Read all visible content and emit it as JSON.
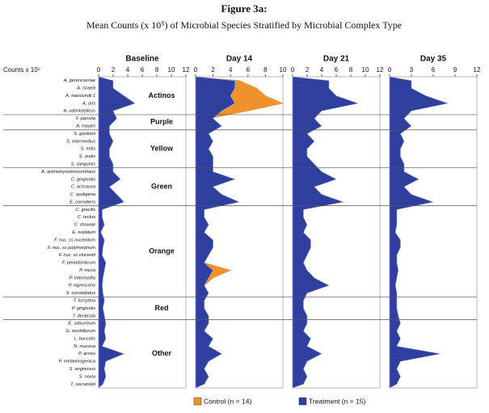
{
  "chart_data": {
    "type": "area",
    "title": "Figure 3a:",
    "subtitle": "Mean Counts (x 10⁵) of Microbial Species Stratified by Microbial Complex Type",
    "axis_label": "Counts x 10⁵",
    "groups": [
      {
        "name": "Actinos",
        "species": [
          "A. gerencseriae",
          "A. israelii",
          "A. naeslundii 1",
          "A. oris",
          "A. odontolyticus"
        ]
      },
      {
        "name": "Purple",
        "species": [
          "V. parvula",
          "A. meyeri"
        ]
      },
      {
        "name": "Yellow",
        "species": [
          "S. gordonii",
          "S. intermedius",
          "S. mitis",
          "S. oralis",
          "S. sanguinis"
        ]
      },
      {
        "name": "Green",
        "species": [
          "A. actinomycetemcomitans",
          "C. gingivalis",
          "C. ochracea",
          "C. sputigena",
          "E. corrodens"
        ]
      },
      {
        "name": "Orange",
        "species": [
          "C. gracilis",
          "C. rectus",
          "C. showae",
          "E. nodatum",
          "F. nuc. ss nucleatum",
          "F. nuc. ss polymorphum",
          "F. nuc. ss vincentii",
          "F. periodonticum",
          "P. micra",
          "P. intermedia",
          "P. nigrescens",
          "S. constellatus"
        ]
      },
      {
        "name": "Red",
        "species": [
          "T. forsythia",
          "P. gingivalis",
          "T. denticola"
        ]
      },
      {
        "name": "Other",
        "species": [
          "E. saburreum",
          "G. morbillorum",
          "L. buccalis",
          "N. mucosa",
          "P. acnes",
          "P. melaninogenica",
          "S. anginosus",
          "S. noxia",
          "T. socranskii"
        ]
      }
    ],
    "legend": [
      {
        "name": "Control (n = 14)",
        "color": "#f0922b"
      },
      {
        "name": "Treatment (n = 15)",
        "color": "#2e3f9e"
      }
    ],
    "panels": [
      {
        "title": "Baseline",
        "xlim": [
          0,
          12
        ],
        "xticks": [
          0,
          2,
          4,
          6,
          8,
          10,
          12
        ],
        "series": [
          {
            "name": "Control (n = 14)",
            "color": "#f0922b",
            "values": [
              1.8,
              1.8,
              3.2,
              4.6,
              1.8,
              2.2,
              1.3,
              1.3,
              1.8,
              1.3,
              1.3,
              1.8,
              1.8,
              2.7,
              1.3,
              2.2,
              3.2,
              0.4,
              0.4,
              0.7,
              0.3,
              0.7,
              0.5,
              0.4,
              0.9,
              0.7,
              0.5,
              0.4,
              0.5,
              0.7,
              0.5,
              0.7,
              0.9,
              0.7,
              0.9,
              0.4,
              3.2,
              0.9,
              0.7,
              0.9,
              0.5
            ]
          },
          {
            "name": "Treatment (n = 15)",
            "color": "#2e3f9e",
            "values": [
              2,
              2,
              3.5,
              5,
              2,
              2.5,
              1.5,
              1.5,
              2,
              1.5,
              1.5,
              2,
              2,
              3,
              1.5,
              2.5,
              3.5,
              0.5,
              0.5,
              0.8,
              0.3,
              0.8,
              0.6,
              0.5,
              1,
              0.8,
              0.6,
              0.5,
              0.6,
              0.8,
              0.6,
              0.8,
              1,
              0.8,
              1,
              0.5,
              3.5,
              1,
              0.8,
              1,
              0.6
            ]
          }
        ]
      },
      {
        "title": "Day 14",
        "xlim": [
          0,
          10
        ],
        "xticks": [
          0,
          2,
          4,
          6,
          8,
          10
        ],
        "series": [
          {
            "name": "Control (n = 14)",
            "color": "#f0922b",
            "values": [
              5,
              7,
              8,
              10,
              6,
              1.5,
              2.5,
              1,
              1.5,
              1,
              1.5,
              1.5,
              1.5,
              4,
              1.5,
              2.5,
              4.5,
              0.8,
              0.8,
              1,
              0.8,
              1.5,
              1.5,
              1,
              1,
              4,
              2,
              1,
              1,
              0.8,
              0.8,
              1,
              1,
              0.8,
              1.5,
              1,
              2.5,
              1,
              0.8,
              1,
              0.8
            ]
          },
          {
            "name": "Treatment (n = 15)",
            "color": "#2e3f9e",
            "values": [
              4.5,
              4.5,
              4,
              4.5,
              3,
              2,
              3,
              1.5,
              2,
              1.5,
              2,
              2,
              2,
              4.5,
              2,
              3,
              5,
              1,
              1,
              1.5,
              1,
              2,
              2,
              1.5,
              1,
              2,
              1.5,
              1,
              1.5,
              1,
              1,
              1.5,
              1.5,
              1,
              2,
              1.5,
              3,
              1.5,
              1,
              1.5,
              1
            ]
          }
        ]
      },
      {
        "title": "Day 21",
        "xlim": [
          0,
          12
        ],
        "xticks": [
          0,
          2,
          4,
          6,
          8,
          10,
          12
        ],
        "series": [
          {
            "name": "Control (n = 14)",
            "color": "#f0922b",
            "values": [
              4,
              4,
              5,
              7.5,
              3.2,
              2.4,
              3.2,
              1.6,
              2.4,
              1.6,
              1.6,
              2.4,
              3.2,
              5,
              2.4,
              3.2,
              5.6,
              1.2,
              1.2,
              1.6,
              1.2,
              2,
              2,
              1.6,
              1.2,
              1.6,
              2.4,
              4,
              1.6,
              1.2,
              1.2,
              1.6,
              1.6,
              1.2,
              2,
              1.6,
              3.2,
              1.6,
              1.2,
              1.6,
              1.2
            ]
          },
          {
            "name": "Treatment (n = 15)",
            "color": "#2e3f9e",
            "values": [
              5,
              5,
              6,
              9,
              4,
              3,
              4,
              2,
              3,
              2,
              2,
              3,
              4,
              6,
              3,
              4,
              7,
              1.5,
              1.5,
              2,
              1.5,
              2.5,
              2.5,
              2,
              1.5,
              2,
              3,
              5,
              2,
              1.5,
              1.5,
              2,
              2,
              1.5,
              2.5,
              2,
              4,
              2,
              1.5,
              2,
              1.5
            ]
          }
        ]
      },
      {
        "title": "Day 35",
        "xlim": [
          0,
          12
        ],
        "xticks": [
          0,
          3,
          6,
          9,
          12
        ],
        "series": [
          {
            "name": "Control (n = 14)",
            "color": "#f0922b",
            "values": [
              2.6,
              2.6,
              4.3,
              6.8,
              2.6,
              1.7,
              2.6,
              1.3,
              1.7,
              1.3,
              1.3,
              1.7,
              1.7,
              3.4,
              1.7,
              2.6,
              5.1,
              0.8,
              0.8,
              0.8,
              0.7,
              1.3,
              1.3,
              0.8,
              0.8,
              1,
              0.8,
              0.7,
              0.8,
              0.8,
              0.8,
              1,
              1.3,
              0.8,
              1.3,
              0.8,
              6,
              1.3,
              0.8,
              1.3,
              0.8
            ]
          },
          {
            "name": "Treatment (n = 15)",
            "color": "#2e3f9e",
            "values": [
              3,
              3,
              5,
              8,
              3,
              2,
              3,
              1.5,
              2,
              1.5,
              1.5,
              2,
              2,
              4,
              2,
              3,
              6,
              1,
              1,
              1,
              0.8,
              1.5,
              1.5,
              1,
              1,
              1.2,
              1,
              0.8,
              1,
              1,
              1,
              1.2,
              1.5,
              1,
              1.5,
              1,
              7,
              1.5,
              1,
              1.5,
              1
            ]
          }
        ]
      }
    ]
  }
}
